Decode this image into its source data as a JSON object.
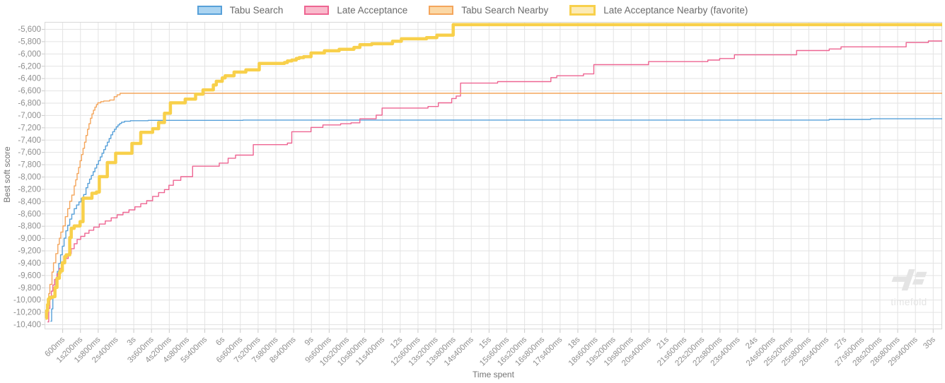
{
  "ui": {
    "watermark_text": "timefold"
  },
  "chart_data": {
    "type": "line",
    "interpolation": "step-after",
    "title": "",
    "xlabel": "Time spent",
    "ylabel": "Best soft score",
    "grid": true,
    "legend_position": "top-center",
    "x_axis": {
      "min_seconds": 0,
      "max_seconds": 30.33,
      "ticks": [
        {
          "t": 0.6,
          "label": "600ms"
        },
        {
          "t": 1.2,
          "label": "1s200ms"
        },
        {
          "t": 1.8,
          "label": "1s800ms"
        },
        {
          "t": 2.4,
          "label": "2s400ms"
        },
        {
          "t": 3.0,
          "label": "3s"
        },
        {
          "t": 3.6,
          "label": "3s600ms"
        },
        {
          "t": 4.2,
          "label": "4s200ms"
        },
        {
          "t": 4.8,
          "label": "4s800ms"
        },
        {
          "t": 5.4,
          "label": "5s400ms"
        },
        {
          "t": 6.0,
          "label": "6s"
        },
        {
          "t": 6.6,
          "label": "6s600ms"
        },
        {
          "t": 7.2,
          "label": "7s200ms"
        },
        {
          "t": 7.8,
          "label": "7s800ms"
        },
        {
          "t": 8.4,
          "label": "8s400ms"
        },
        {
          "t": 9.0,
          "label": "9s"
        },
        {
          "t": 9.6,
          "label": "9s600ms"
        },
        {
          "t": 10.2,
          "label": "10s200ms"
        },
        {
          "t": 10.8,
          "label": "10s800ms"
        },
        {
          "t": 11.4,
          "label": "11s400ms"
        },
        {
          "t": 12.0,
          "label": "12s"
        },
        {
          "t": 12.6,
          "label": "12s600ms"
        },
        {
          "t": 13.2,
          "label": "13s200ms"
        },
        {
          "t": 13.8,
          "label": "13s800ms"
        },
        {
          "t": 14.4,
          "label": "14s400ms"
        },
        {
          "t": 15.0,
          "label": "15s"
        },
        {
          "t": 15.6,
          "label": "15s600ms"
        },
        {
          "t": 16.2,
          "label": "16s200ms"
        },
        {
          "t": 16.8,
          "label": "16s800ms"
        },
        {
          "t": 17.4,
          "label": "17s400ms"
        },
        {
          "t": 18.0,
          "label": "18s"
        },
        {
          "t": 18.6,
          "label": "18s600ms"
        },
        {
          "t": 19.2,
          "label": "19s200ms"
        },
        {
          "t": 19.8,
          "label": "19s800ms"
        },
        {
          "t": 20.4,
          "label": "20s400ms"
        },
        {
          "t": 21.0,
          "label": "21s"
        },
        {
          "t": 21.6,
          "label": "21s600ms"
        },
        {
          "t": 22.2,
          "label": "22s200ms"
        },
        {
          "t": 22.8,
          "label": "22s800ms"
        },
        {
          "t": 23.4,
          "label": "23s400ms"
        },
        {
          "t": 24.0,
          "label": "24s"
        },
        {
          "t": 24.6,
          "label": "24s600ms"
        },
        {
          "t": 25.2,
          "label": "25s200ms"
        },
        {
          "t": 25.8,
          "label": "25s800ms"
        },
        {
          "t": 26.4,
          "label": "26s400ms"
        },
        {
          "t": 27.0,
          "label": "27s"
        },
        {
          "t": 27.6,
          "label": "27s600ms"
        },
        {
          "t": 28.2,
          "label": "28s200ms"
        },
        {
          "t": 28.8,
          "label": "28s800ms"
        },
        {
          "t": 29.4,
          "label": "29s400ms"
        },
        {
          "t": 30.0,
          "label": "30s"
        }
      ]
    },
    "y_axis": {
      "min": -10480,
      "max": -5490,
      "tick_values": [
        -5600,
        -5800,
        -6000,
        -6200,
        -6400,
        -6600,
        -6800,
        -7000,
        -7200,
        -7400,
        -7600,
        -7800,
        -8000,
        -8200,
        -8400,
        -8600,
        -8800,
        -9000,
        -9200,
        -9400,
        -9600,
        -9800,
        -10000,
        -10200,
        -10400
      ],
      "tick_labels": [
        "-5,600",
        "-5,800",
        "-6,000",
        "-6,200",
        "-6,400",
        "-6,600",
        "-6,800",
        "-7,000",
        "-7,200",
        "-7,400",
        "-7,600",
        "-7,800",
        "-8,000",
        "-8,200",
        "-8,400",
        "-8,600",
        "-8,800",
        "-9,000",
        "-9,200",
        "-9,400",
        "-9,600",
        "-9,800",
        "-10,000",
        "-10,200",
        "-10,400"
      ]
    },
    "series": [
      {
        "name": "Tabu Search",
        "color": "#57a0d9",
        "width": 1.4,
        "legend_fill": "#abd4f1",
        "legend_border": "#57a0d9",
        "legend_border_px": 2,
        "points": [
          [
            0.2,
            -10350
          ],
          [
            0.24,
            -10150
          ],
          [
            0.28,
            -9960
          ],
          [
            0.33,
            -9820
          ],
          [
            0.38,
            -9660
          ],
          [
            0.43,
            -9540
          ],
          [
            0.48,
            -9410
          ],
          [
            0.54,
            -9270
          ],
          [
            0.6,
            -9130
          ],
          [
            0.66,
            -9000
          ],
          [
            0.72,
            -8880
          ],
          [
            0.78,
            -8790
          ],
          [
            0.85,
            -8690
          ],
          [
            0.92,
            -8610
          ],
          [
            1.0,
            -8520
          ],
          [
            1.08,
            -8460
          ],
          [
            1.16,
            -8410
          ],
          [
            1.24,
            -8350
          ],
          [
            1.32,
            -8290
          ],
          [
            1.4,
            -8180
          ],
          [
            1.46,
            -8110
          ],
          [
            1.52,
            -8040
          ],
          [
            1.58,
            -7980
          ],
          [
            1.64,
            -7920
          ],
          [
            1.7,
            -7860
          ],
          [
            1.76,
            -7800
          ],
          [
            1.82,
            -7740
          ],
          [
            1.88,
            -7680
          ],
          [
            1.94,
            -7620
          ],
          [
            2.0,
            -7560
          ],
          [
            2.06,
            -7500
          ],
          [
            2.12,
            -7440
          ],
          [
            2.18,
            -7380
          ],
          [
            2.24,
            -7320
          ],
          [
            2.3,
            -7270
          ],
          [
            2.36,
            -7230
          ],
          [
            2.42,
            -7190
          ],
          [
            2.48,
            -7160
          ],
          [
            2.54,
            -7135
          ],
          [
            2.6,
            -7115
          ],
          [
            2.7,
            -7100
          ],
          [
            2.9,
            -7090
          ],
          [
            3.5,
            -7085
          ],
          [
            6.7,
            -7080
          ],
          [
            26.5,
            -7070
          ],
          [
            27.9,
            -7060
          ]
        ]
      },
      {
        "name": "Late Acceptance",
        "color": "#ee6592",
        "width": 1.4,
        "legend_fill": "#f9bacc",
        "legend_border": "#ee6592",
        "legend_border_px": 2,
        "points": [
          [
            0.1,
            -10360
          ],
          [
            0.14,
            -10140
          ],
          [
            0.18,
            -9990
          ],
          [
            0.23,
            -9860
          ],
          [
            0.28,
            -9760
          ],
          [
            0.34,
            -9670
          ],
          [
            0.42,
            -9580
          ],
          [
            0.5,
            -9490
          ],
          [
            0.6,
            -9410
          ],
          [
            0.7,
            -9330
          ],
          [
            0.8,
            -9250
          ],
          [
            0.9,
            -9170
          ],
          [
            1.0,
            -9090
          ],
          [
            1.1,
            -9020
          ],
          [
            1.22,
            -8970
          ],
          [
            1.36,
            -8920
          ],
          [
            1.5,
            -8870
          ],
          [
            1.66,
            -8820
          ],
          [
            1.85,
            -8770
          ],
          [
            2.05,
            -8720
          ],
          [
            2.25,
            -8670
          ],
          [
            2.45,
            -8620
          ],
          [
            2.65,
            -8580
          ],
          [
            2.85,
            -8540
          ],
          [
            3.05,
            -8490
          ],
          [
            3.25,
            -8440
          ],
          [
            3.45,
            -8390
          ],
          [
            3.65,
            -8320
          ],
          [
            3.85,
            -8260
          ],
          [
            4.05,
            -8210
          ],
          [
            4.2,
            -8140
          ],
          [
            4.35,
            -8060
          ],
          [
            4.6,
            -8000
          ],
          [
            5.0,
            -7830
          ],
          [
            5.9,
            -7780
          ],
          [
            6.2,
            -7700
          ],
          [
            6.45,
            -7650
          ],
          [
            7.05,
            -7480
          ],
          [
            8.2,
            -7455
          ],
          [
            8.35,
            -7270
          ],
          [
            9.0,
            -7200
          ],
          [
            9.4,
            -7160
          ],
          [
            10.0,
            -7140
          ],
          [
            10.35,
            -7125
          ],
          [
            10.65,
            -7060
          ],
          [
            11.2,
            -7000
          ],
          [
            11.4,
            -6885
          ],
          [
            12.95,
            -6860
          ],
          [
            13.3,
            -6800
          ],
          [
            13.75,
            -6730
          ],
          [
            13.9,
            -6690
          ],
          [
            14.05,
            -6480
          ],
          [
            15.3,
            -6455
          ],
          [
            17.1,
            -6390
          ],
          [
            17.3,
            -6360
          ],
          [
            18.2,
            -6330
          ],
          [
            18.55,
            -6180
          ],
          [
            20.4,
            -6130
          ],
          [
            22.4,
            -6105
          ],
          [
            22.8,
            -6080
          ],
          [
            23.3,
            -6020
          ],
          [
            25.4,
            -5950
          ],
          [
            26.5,
            -5925
          ],
          [
            26.9,
            -5890
          ],
          [
            29.1,
            -5820
          ],
          [
            29.85,
            -5795
          ]
        ]
      },
      {
        "name": "Tabu Search Nearby",
        "color": "#f4a55b",
        "width": 1.4,
        "legend_fill": "#fbd8a6",
        "legend_border": "#f4a55b",
        "legend_border_px": 2,
        "points": [
          [
            0.05,
            -10280
          ],
          [
            0.1,
            -10050
          ],
          [
            0.14,
            -9900
          ],
          [
            0.18,
            -9750
          ],
          [
            0.25,
            -9550
          ],
          [
            0.3,
            -9400
          ],
          [
            0.38,
            -9250
          ],
          [
            0.45,
            -9100
          ],
          [
            0.5,
            -9000
          ],
          [
            0.55,
            -8900
          ],
          [
            0.62,
            -8800
          ],
          [
            0.7,
            -8650
          ],
          [
            0.78,
            -8520
          ],
          [
            0.85,
            -8400
          ],
          [
            0.92,
            -8300
          ],
          [
            1.0,
            -8150
          ],
          [
            1.05,
            -8050
          ],
          [
            1.1,
            -7950
          ],
          [
            1.15,
            -7850
          ],
          [
            1.2,
            -7740
          ],
          [
            1.25,
            -7640
          ],
          [
            1.3,
            -7540
          ],
          [
            1.35,
            -7440
          ],
          [
            1.4,
            -7330
          ],
          [
            1.45,
            -7230
          ],
          [
            1.5,
            -7140
          ],
          [
            1.55,
            -7050
          ],
          [
            1.6,
            -6980
          ],
          [
            1.65,
            -6920
          ],
          [
            1.7,
            -6870
          ],
          [
            1.75,
            -6830
          ],
          [
            1.8,
            -6800
          ],
          [
            1.9,
            -6780
          ],
          [
            2.0,
            -6770
          ],
          [
            2.2,
            -6755
          ],
          [
            2.35,
            -6700
          ],
          [
            2.45,
            -6670
          ],
          [
            2.55,
            -6645
          ]
        ]
      },
      {
        "name": "Late Acceptance Nearby (favorite)",
        "color": "#f8d04b",
        "width": 4.5,
        "legend_fill": "#fcebb5",
        "legend_border": "#f8d04b",
        "legend_border_px": 3,
        "points": [
          [
            0.03,
            -10300
          ],
          [
            0.07,
            -10180
          ],
          [
            0.1,
            -10080
          ],
          [
            0.13,
            -9990
          ],
          [
            0.17,
            -9960
          ],
          [
            0.29,
            -9950
          ],
          [
            0.35,
            -9800
          ],
          [
            0.42,
            -9650
          ],
          [
            0.5,
            -9560
          ],
          [
            0.53,
            -9530
          ],
          [
            0.6,
            -9400
          ],
          [
            0.68,
            -9300
          ],
          [
            0.73,
            -9270
          ],
          [
            0.85,
            -8990
          ],
          [
            0.9,
            -8840
          ],
          [
            1.0,
            -8800
          ],
          [
            1.2,
            -8730
          ],
          [
            1.3,
            -8350
          ],
          [
            1.6,
            -8270
          ],
          [
            1.75,
            -8250
          ],
          [
            1.85,
            -8000
          ],
          [
            2.12,
            -7770
          ],
          [
            2.4,
            -7620
          ],
          [
            2.95,
            -7460
          ],
          [
            3.25,
            -7280
          ],
          [
            3.65,
            -7220
          ],
          [
            3.85,
            -7120
          ],
          [
            4.05,
            -6970
          ],
          [
            4.25,
            -6800
          ],
          [
            4.75,
            -6740
          ],
          [
            5.1,
            -6660
          ],
          [
            5.35,
            -6590
          ],
          [
            5.7,
            -6510
          ],
          [
            5.8,
            -6450
          ],
          [
            6.0,
            -6395
          ],
          [
            6.1,
            -6360
          ],
          [
            6.4,
            -6300
          ],
          [
            6.8,
            -6265
          ],
          [
            7.25,
            -6160
          ],
          [
            8.1,
            -6145
          ],
          [
            8.2,
            -6120
          ],
          [
            8.35,
            -6105
          ],
          [
            8.5,
            -6080
          ],
          [
            8.6,
            -6065
          ],
          [
            8.75,
            -6050
          ],
          [
            9.0,
            -5990
          ],
          [
            9.45,
            -5955
          ],
          [
            9.95,
            -5930
          ],
          [
            10.45,
            -5900
          ],
          [
            10.65,
            -5855
          ],
          [
            11.05,
            -5840
          ],
          [
            11.75,
            -5800
          ],
          [
            12.05,
            -5760
          ],
          [
            12.9,
            -5740
          ],
          [
            13.25,
            -5700
          ],
          [
            13.8,
            -5530
          ]
        ]
      }
    ]
  }
}
